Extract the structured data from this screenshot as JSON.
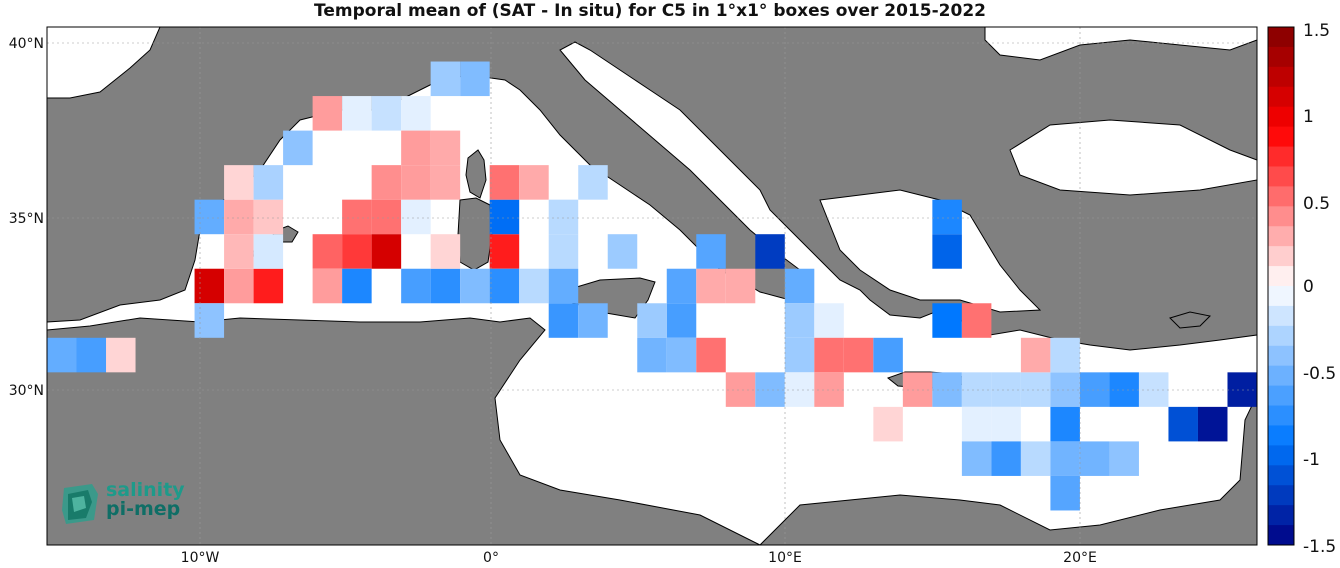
{
  "title": "Temporal mean of (SAT - In situ) for C5 in 1°x1° boxes over 2015-2022",
  "colors": {
    "land": "#808080",
    "sea": "#ffffff",
    "coast": "#000000"
  },
  "axes": {
    "lat_ticks": [
      "40°N",
      "35°N",
      "30°N"
    ],
    "lon_ticks": [
      "10°W",
      "0°",
      "10°E",
      "20°E"
    ]
  },
  "colorbar": {
    "min": -1.5,
    "max": 1.5,
    "tick_labels": [
      "1.5",
      "1",
      "0.5",
      "0",
      "-0.5",
      "-1",
      "-1.5"
    ]
  },
  "logo": {
    "line1": "salinity",
    "line2": "pi-mep"
  },
  "chart_data": {
    "type": "heatmap",
    "title": "Temporal mean of (SAT - In situ) for C5 in 1°x1° boxes over 2015-2022",
    "lon_range": [
      -15.5,
      25.5
    ],
    "lat_range": [
      25.5,
      40.5
    ],
    "value_range": [
      -1.5,
      1.5
    ],
    "cells": [
      [
        -15,
        31,
        -0.55
      ],
      [
        -14,
        31,
        -0.65
      ],
      [
        -13,
        31,
        0.15
      ],
      [
        -10,
        33,
        1.1
      ],
      [
        -9,
        33,
        0.35
      ],
      [
        -8,
        33,
        0.8
      ],
      [
        -10,
        32,
        -0.4
      ],
      [
        -9,
        34,
        0.25
      ],
      [
        -8,
        34,
        -0.15
      ],
      [
        -10,
        35,
        -0.55
      ],
      [
        -9,
        35,
        0.3
      ],
      [
        -8,
        35,
        0.2
      ],
      [
        -9,
        36,
        0.15
      ],
      [
        -8,
        36,
        -0.3
      ],
      [
        -7,
        37,
        -0.4
      ],
      [
        -6,
        38,
        0.35
      ],
      [
        -5,
        38,
        -0.1
      ],
      [
        -4,
        38,
        -0.2
      ],
      [
        -3,
        38,
        -0.1
      ],
      [
        -2,
        39,
        -0.35
      ],
      [
        -1,
        39,
        -0.45
      ],
      [
        -5,
        35,
        0.5
      ],
      [
        -4,
        35,
        0.5
      ],
      [
        -3,
        35,
        -0.1
      ],
      [
        -6,
        34,
        0.55
      ],
      [
        -5,
        34,
        0.7
      ],
      [
        -4,
        34,
        1.1
      ],
      [
        -6,
        33,
        0.35
      ],
      [
        -5,
        33,
        -0.8
      ],
      [
        -3,
        33,
        -0.65
      ],
      [
        -2,
        33,
        -0.75
      ],
      [
        -1,
        33,
        -0.45
      ],
      [
        -3,
        37,
        0.35
      ],
      [
        -2,
        37,
        0.3
      ],
      [
        -4,
        36,
        0.4
      ],
      [
        -3,
        36,
        0.35
      ],
      [
        -2,
        36,
        0.3
      ],
      [
        -2,
        34,
        0.15
      ],
      [
        0,
        34,
        0.8
      ],
      [
        0,
        35,
        -0.95
      ],
      [
        0,
        36,
        0.5
      ],
      [
        1,
        36,
        0.3
      ],
      [
        0,
        33,
        -0.75
      ],
      [
        1,
        33,
        -0.25
      ],
      [
        2,
        34,
        -0.25
      ],
      [
        2,
        35,
        -0.25
      ],
      [
        3,
        36,
        -0.25
      ],
      [
        4,
        34,
        -0.35
      ],
      [
        2,
        32,
        -0.7
      ],
      [
        3,
        32,
        -0.5
      ],
      [
        2,
        33,
        -0.55
      ],
      [
        6,
        33,
        -0.6
      ],
      [
        7,
        33,
        0.3
      ],
      [
        8,
        33,
        0.3
      ],
      [
        6,
        32,
        -0.65
      ],
      [
        5,
        32,
        -0.35
      ],
      [
        7,
        34,
        -0.6
      ],
      [
        9,
        34,
        -1.2
      ],
      [
        10,
        33,
        -0.55
      ],
      [
        10,
        32,
        -0.35
      ],
      [
        11,
        32,
        -0.1
      ],
      [
        5,
        31,
        -0.5
      ],
      [
        6,
        31,
        -0.45
      ],
      [
        7,
        31,
        0.5
      ],
      [
        10,
        31,
        -0.35
      ],
      [
        11,
        31,
        0.5
      ],
      [
        12,
        31,
        0.5
      ],
      [
        13,
        31,
        -0.65
      ],
      [
        8,
        30,
        0.35
      ],
      [
        9,
        30,
        -0.45
      ],
      [
        10,
        30,
        -0.1
      ],
      [
        11,
        30,
        0.35
      ],
      [
        14,
        30,
        0.35
      ],
      [
        15,
        30,
        -0.45
      ],
      [
        16,
        30,
        -0.25
      ],
      [
        17,
        30,
        -0.25
      ],
      [
        18,
        30,
        -0.25
      ],
      [
        19,
        30,
        -0.4
      ],
      [
        20,
        30,
        -0.65
      ],
      [
        21,
        30,
        -0.8
      ],
      [
        22,
        30,
        -0.2
      ],
      [
        25,
        30,
        -1.35
      ],
      [
        13,
        29,
        0.15
      ],
      [
        16,
        29,
        -0.1
      ],
      [
        17,
        29,
        -0.1
      ],
      [
        19,
        29,
        -0.8
      ],
      [
        23,
        29,
        -1.1
      ],
      [
        24,
        29,
        -1.4
      ],
      [
        16,
        28,
        -0.45
      ],
      [
        17,
        28,
        -0.7
      ],
      [
        18,
        28,
        -0.25
      ],
      [
        19,
        28,
        -0.5
      ],
      [
        20,
        28,
        -0.5
      ],
      [
        21,
        28,
        -0.4
      ],
      [
        19,
        27,
        -0.6
      ],
      [
        18,
        31,
        0.3
      ],
      [
        19,
        31,
        -0.25
      ],
      [
        15,
        32,
        -0.9
      ],
      [
        16,
        32,
        0.5
      ],
      [
        15,
        34,
        -1.0
      ],
      [
        15,
        35,
        -0.8
      ]
    ]
  }
}
